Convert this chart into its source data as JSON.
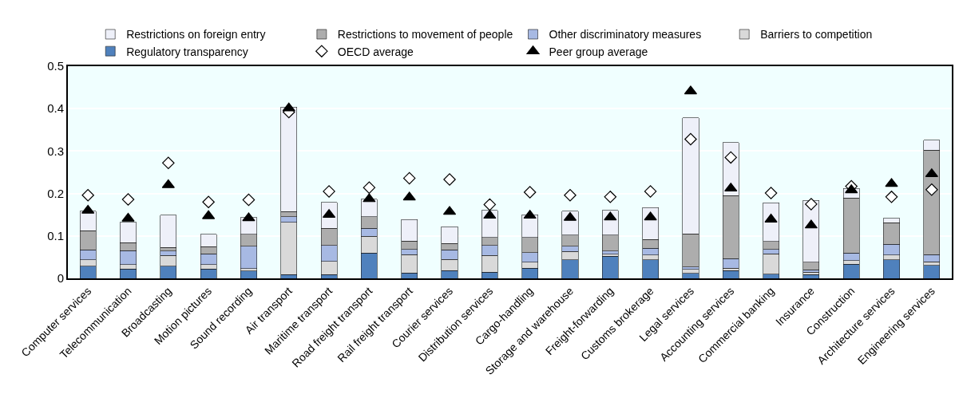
{
  "chart_data": {
    "type": "bar",
    "stacked": true,
    "legend": "top",
    "grid": "y",
    "categories": [
      "Computer services",
      "Telecommunication",
      "Broadcasting",
      "Motion pictures",
      "Sound recording",
      "Air transport",
      "Maritime transport",
      "Road freight transport",
      "Rail freight transport",
      "Courier services",
      "Distribution services",
      "Cargo-handling",
      "Storage and warehouse",
      "Freight-forwarding",
      "Customs brokerage",
      "Legal services",
      "Accounting services",
      "Commercial banking",
      "Insurance",
      "Construction",
      "Architecture services",
      "Engineering services"
    ],
    "ylim": [
      0,
      0.5
    ],
    "yticks": [
      {
        "value": 0,
        "label": "0"
      },
      0.1,
      0.2,
      0.3,
      0.4,
      0.5
    ],
    "series": [
      {
        "name": "Regulatory transparency",
        "color": "#4f81bd",
        "values": [
          0.029,
          0.022,
          0.029,
          0.022,
          0.017,
          0.009,
          0.009,
          0.06,
          0.013,
          0.018,
          0.015,
          0.024,
          0.044,
          0.052,
          0.044,
          0.012,
          0.018,
          0.01,
          0.009,
          0.033,
          0.044,
          0.031
        ]
      },
      {
        "name": "Barriers to competition",
        "color": "#d9d9d9",
        "values": [
          0.015,
          0.01,
          0.025,
          0.01,
          0.006,
          0.123,
          0.031,
          0.039,
          0.043,
          0.027,
          0.039,
          0.014,
          0.019,
          0.005,
          0.011,
          0.009,
          0.006,
          0.048,
          0.006,
          0.009,
          0.011,
          0.008
        ]
      },
      {
        "name": "Other discriminatory measures",
        "color": "#a7b9e3",
        "values": [
          0.023,
          0.033,
          0.01,
          0.026,
          0.053,
          0.013,
          0.038,
          0.019,
          0.012,
          0.022,
          0.024,
          0.023,
          0.013,
          0.007,
          0.016,
          0.006,
          0.023,
          0.01,
          0.005,
          0.018,
          0.025,
          0.017
        ]
      },
      {
        "name": "Restrictions to movement of people",
        "color": "#adadad",
        "values": [
          0.045,
          0.019,
          0.009,
          0.017,
          0.028,
          0.012,
          0.04,
          0.027,
          0.02,
          0.015,
          0.018,
          0.035,
          0.026,
          0.038,
          0.021,
          0.078,
          0.148,
          0.019,
          0.018,
          0.129,
          0.051,
          0.246
        ]
      },
      {
        "name": "Restrictions on foreign entry",
        "color": "#eef0f9",
        "values": [
          0.046,
          0.048,
          0.076,
          0.029,
          0.039,
          0.247,
          0.061,
          0.042,
          0.051,
          0.04,
          0.064,
          0.054,
          0.056,
          0.058,
          0.075,
          0.273,
          0.125,
          0.091,
          0.146,
          0.023,
          0.01,
          0.024
        ]
      },
      {
        "name": "OECD average",
        "type": "scatter",
        "marker": "diamond",
        "color": "#ffffff",
        "values": [
          0.196,
          0.186,
          0.272,
          0.18,
          0.185,
          0.392,
          0.205,
          0.214,
          0.236,
          0.233,
          0.174,
          0.203,
          0.196,
          0.192,
          0.205,
          0.328,
          0.285,
          0.201,
          0.175,
          0.217,
          0.192,
          0.209
        ]
      },
      {
        "name": "Peer group average",
        "type": "scatter",
        "marker": "triangle",
        "color": "#000000",
        "values": [
          0.16,
          0.141,
          0.22,
          0.147,
          0.142,
          0.401,
          0.15,
          0.187,
          0.191,
          0.157,
          0.148,
          0.148,
          0.143,
          0.144,
          0.144,
          0.441,
          0.212,
          0.139,
          0.125,
          0.208,
          0.223,
          0.246
        ]
      }
    ]
  }
}
